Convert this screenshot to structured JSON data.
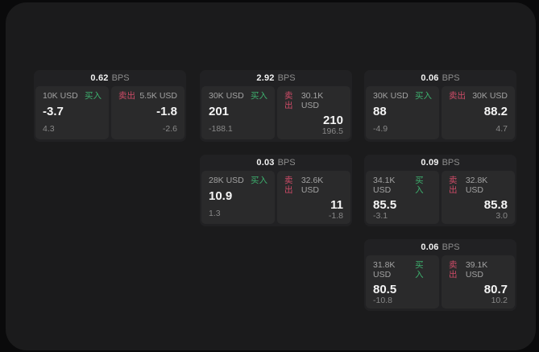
{
  "colors": {
    "buy": "#3db06e",
    "sell": "#cd4b67",
    "surface": "#1b1b1c",
    "card": "#212123",
    "panel": "#2a2a2b"
  },
  "labels": {
    "bps_unit": "BPS",
    "buy": "买入",
    "sell": "卖出"
  },
  "cards": [
    {
      "bps": "0.62",
      "buy": {
        "amount": "10K USD",
        "value": "-3.7",
        "sub": "4.3"
      },
      "sell": {
        "amount": "5.5K USD",
        "value": "-1.8",
        "sub": "-2.6"
      }
    },
    {
      "bps": "2.92",
      "buy": {
        "amount": "30K USD",
        "value": "201",
        "sub": "-188.1"
      },
      "sell": {
        "amount": "30.1K USD",
        "value": "210",
        "sub": "196.5"
      }
    },
    {
      "bps": "0.06",
      "buy": {
        "amount": "30K USD",
        "value": "88",
        "sub": "-4.9"
      },
      "sell": {
        "amount": "30K USD",
        "value": "88.2",
        "sub": "4.7"
      }
    },
    {
      "bps": "0.03",
      "buy": {
        "amount": "28K USD",
        "value": "10.9",
        "sub": "1.3"
      },
      "sell": {
        "amount": "32.6K USD",
        "value": "11",
        "sub": "-1.8"
      }
    },
    {
      "bps": "0.09",
      "buy": {
        "amount": "34.1K USD",
        "value": "85.5",
        "sub": "-3.1"
      },
      "sell": {
        "amount": "32.8K USD",
        "value": "85.8",
        "sub": "3.0"
      }
    },
    {
      "bps": "0.06",
      "buy": {
        "amount": "31.8K USD",
        "value": "80.5",
        "sub": "-10.8"
      },
      "sell": {
        "amount": "39.1K USD",
        "value": "80.7",
        "sub": "10.2"
      }
    }
  ]
}
